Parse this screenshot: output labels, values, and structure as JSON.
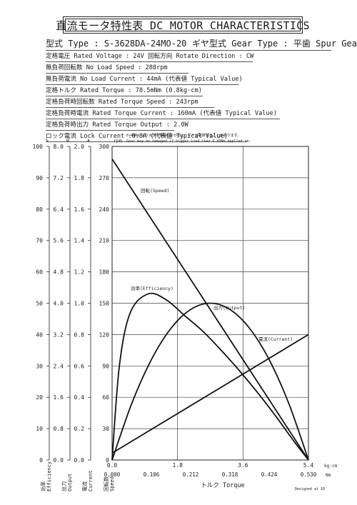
{
  "header": {
    "title": "直流モータ特性表 DC MOTOR CHARACTERISTICS",
    "model": "型式 Type : S-3628DA-24MO-20",
    "gear_type": "ギヤ型式 Gear Type : 平歯  Spur Gear"
  },
  "specs": [
    "定格電圧 Rated Voltage : 24V  回転方向 Rotate Direction : CW",
    "無負荷回転数 No Load Speed : 288rpm",
    "無負荷電流 No Load Current : 44mA (代表値 Typical Value)",
    "定格トルク Rated Torque : 78.5mNm (0.8kg·cm)",
    "定格負荷時回転数 Rated Torque Speed : 243rpm",
    "定格負荷時電流 Rated Torque Current : 160mA (代表値 Typical Value)",
    "定格負荷時出力 Rated Torque Output : 2.0W",
    "ロック電流 Lock Current :0.8A (代表値 Typical Value)"
  ],
  "warning": {
    "jp": "0.49Nm より大きい負荷がかかると、ギヤが破損することがあります。",
    "en": "Gear may be damaged if bigger load than 0.49Nm applied on."
  },
  "footer": "Designed at 10",
  "chart_data": {
    "type": "line",
    "x_axis": {
      "label": "トルク Torque",
      "units_primary": "kg·cm",
      "units_secondary": "Nm",
      "ticks_kgcm": [
        "0.0",
        "1.8",
        "3.6",
        "5.4"
      ],
      "ticks_nm": [
        "0.000",
        "0.106",
        "0.212",
        "0.318",
        "0.424",
        "0.530"
      ],
      "range_kgcm": [
        0,
        5.4
      ]
    },
    "y_axes": [
      {
        "label": "効率 Efficiency",
        "unit": "%",
        "range": [
          0,
          100
        ],
        "ticks": [
          "0",
          "10",
          "20",
          "30",
          "40",
          "50",
          "60",
          "70",
          "80",
          "90",
          "100"
        ]
      },
      {
        "label": "出力 Output",
        "unit": "W",
        "range": [
          0,
          8
        ],
        "ticks": [
          "0.0",
          "0.8",
          "1.6",
          "2.4",
          "3.2",
          "4.0",
          "4.8",
          "5.6",
          "6.4",
          "7.2",
          "8.0"
        ]
      },
      {
        "label": "電流 Current",
        "unit": "A",
        "range": [
          0,
          2
        ],
        "ticks": [
          "0.0",
          "0.2",
          "0.4",
          "0.6",
          "0.8",
          "1.0",
          "1.2",
          "1.4",
          "1.6",
          "1.8",
          "2.0"
        ]
      },
      {
        "label": "回転数 Speed",
        "unit": "rpm",
        "range": [
          0,
          300
        ],
        "ticks": [
          "0",
          "30",
          "60",
          "90",
          "120",
          "150",
          "180",
          "210",
          "240",
          "270",
          "300"
        ]
      }
    ],
    "grid": true,
    "series": [
      {
        "name": "回転(Speed)",
        "axis": "rpm",
        "x": [
          0.0,
          5.4
        ],
        "y": [
          288,
          0
        ]
      },
      {
        "name": "電流(Current)",
        "axis": "A",
        "x": [
          0.0,
          5.4
        ],
        "y": [
          0.044,
          0.8
        ]
      },
      {
        "name": "出力(Output)",
        "axis": "W",
        "x": [
          0.0,
          0.54,
          1.08,
          1.62,
          2.16,
          2.7,
          3.24,
          3.78,
          4.32,
          4.86,
          5.4
        ],
        "y": [
          0.0,
          1.44,
          2.56,
          3.36,
          3.84,
          4.0,
          3.84,
          3.36,
          2.56,
          1.44,
          0.0
        ]
      },
      {
        "name": "効率(Efficiency)",
        "axis": "%",
        "x": [
          0.0,
          0.2,
          0.5,
          1.0,
          1.5,
          2.0,
          2.5,
          3.0,
          3.5,
          4.0,
          4.5,
          5.0,
          5.4
        ],
        "y": [
          0,
          30,
          47,
          53,
          51,
          46,
          41,
          35,
          28.5,
          21.5,
          14,
          6,
          0
        ]
      }
    ]
  }
}
